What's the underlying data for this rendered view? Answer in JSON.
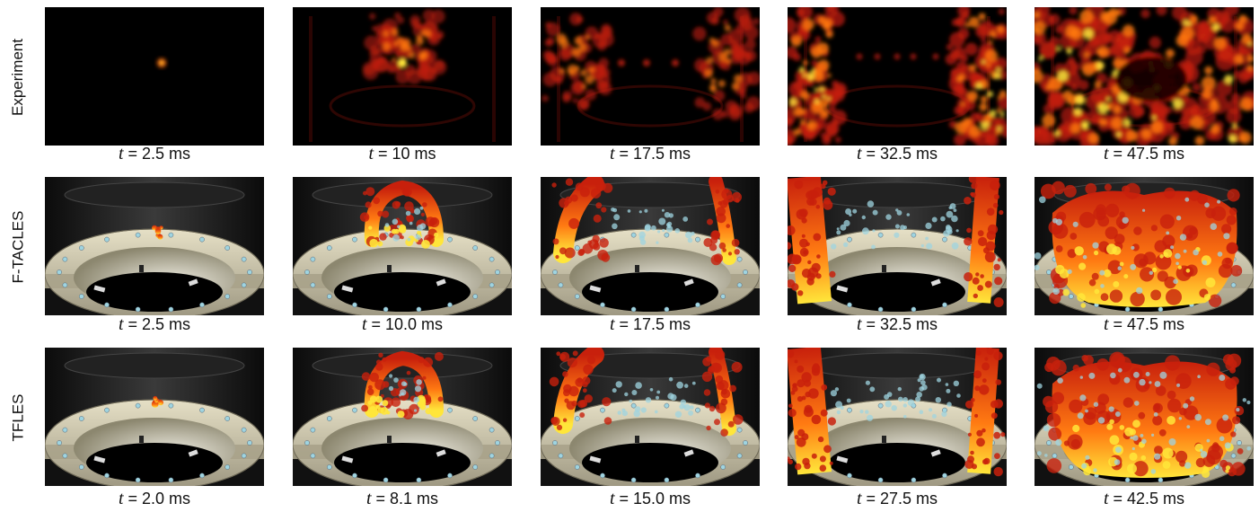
{
  "rows": [
    {
      "label": "Experiment",
      "kind": "exp",
      "captions": [
        "= 2.5 ms",
        "= 10 ms",
        "= 17.5 ms",
        "= 32.5 ms",
        "= 47.5 ms"
      ]
    },
    {
      "label": "F-TACLES",
      "kind": "sim",
      "captions": [
        "= 2.5 ms",
        "= 10.0 ms",
        "= 17.5 ms",
        "= 32.5 ms",
        "= 47.5 ms"
      ]
    },
    {
      "label": "TFLES",
      "kind": "sim",
      "captions": [
        "= 2.0 ms",
        "= 8.1 ms",
        "= 15.0 ms",
        "= 27.5 ms",
        "= 42.5 ms"
      ]
    }
  ],
  "time_symbol": "t",
  "colors": {
    "flame_red": "#c8200c",
    "flame_orange": "#ff7a12",
    "flame_yellow": "#ffe63a",
    "fuel_blue": "#9fd4e0",
    "ring": "#cfc8ad",
    "background": "#000000"
  }
}
